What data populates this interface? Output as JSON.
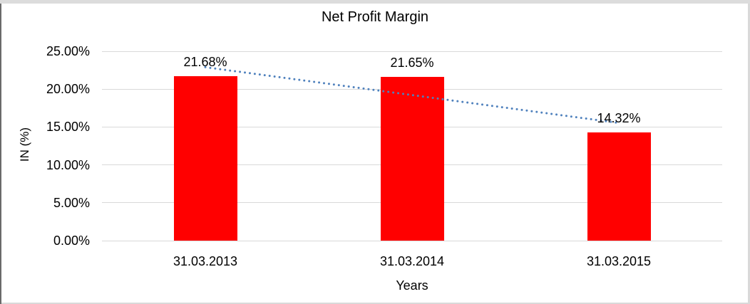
{
  "chart_data": {
    "type": "bar",
    "title": "Net Profit Margin",
    "categories": [
      "31.03.2013",
      "31.03.2014",
      "31.03.2015"
    ],
    "values": [
      21.68,
      21.65,
      14.32
    ],
    "data_labels": [
      "21.68%",
      "21.65%",
      "14.32%"
    ],
    "xlabel": "Years",
    "ylabel": "IN (%)",
    "ylim": [
      0,
      25
    ],
    "ytick_values": [
      25,
      20,
      15,
      10,
      5,
      0
    ],
    "ytick_labels": [
      "25.00%",
      "20.00%",
      "15.00%",
      "10.00%",
      "5.00%",
      "0.00%"
    ],
    "grid": true,
    "legend": "none",
    "bar_color": "#ff0000",
    "gridline_color": "#d9d9d9",
    "text_color": "#000000",
    "trendline": {
      "type": "linear",
      "style": "dotted",
      "color": "#4f81bd"
    }
  }
}
